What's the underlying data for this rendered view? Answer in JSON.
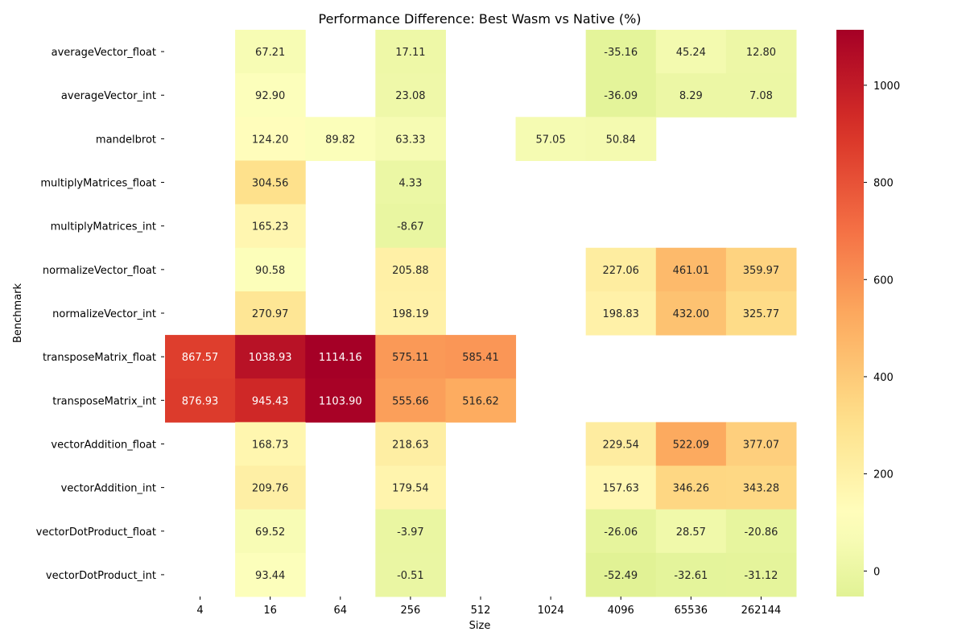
{
  "chart_data": {
    "type": "heatmap",
    "title": "Performance Difference: Best Wasm vs Native (%)",
    "xlabel": "Size",
    "ylabel": "Benchmark",
    "x_categories": [
      "4",
      "16",
      "64",
      "256",
      "512",
      "1024",
      "4096",
      "65536",
      "262144"
    ],
    "y_categories": [
      "averageVector_float",
      "averageVector_int",
      "mandelbrot",
      "multiplyMatrices_float",
      "multiplyMatrices_int",
      "normalizeVector_float",
      "normalizeVector_int",
      "transposeMatrix_float",
      "transposeMatrix_int",
      "vectorAddition_float",
      "vectorAddition_int",
      "vectorDotProduct_float",
      "vectorDotProduct_int"
    ],
    "values": [
      [
        null,
        67.21,
        null,
        17.11,
        null,
        null,
        -35.16,
        45.24,
        12.8
      ],
      [
        null,
        92.9,
        null,
        23.08,
        null,
        null,
        -36.09,
        8.29,
        7.08
      ],
      [
        null,
        124.2,
        89.82,
        63.33,
        null,
        57.05,
        50.84,
        null,
        null
      ],
      [
        null,
        304.56,
        null,
        4.33,
        null,
        null,
        null,
        null,
        null
      ],
      [
        null,
        165.23,
        null,
        -8.67,
        null,
        null,
        null,
        null,
        null
      ],
      [
        null,
        90.58,
        null,
        205.88,
        null,
        null,
        227.06,
        461.01,
        359.97
      ],
      [
        null,
        270.97,
        null,
        198.19,
        null,
        null,
        198.83,
        432.0,
        325.77
      ],
      [
        867.57,
        1038.93,
        1114.16,
        575.11,
        585.41,
        null,
        null,
        null,
        null
      ],
      [
        876.93,
        945.43,
        1103.9,
        555.66,
        516.62,
        null,
        null,
        null,
        null
      ],
      [
        null,
        168.73,
        null,
        218.63,
        null,
        null,
        229.54,
        522.09,
        377.07
      ],
      [
        null,
        209.76,
        null,
        179.54,
        null,
        null,
        157.63,
        346.26,
        343.28
      ],
      [
        null,
        69.52,
        null,
        -3.97,
        null,
        null,
        -26.06,
        28.57,
        -20.86
      ],
      [
        null,
        93.44,
        null,
        -0.51,
        null,
        null,
        -52.49,
        -32.61,
        -31.12
      ]
    ],
    "colormap": "RdYlGn_r",
    "vmin": -52.49,
    "vmax": 1114.16,
    "colorbar_ticks": [
      0,
      200,
      400,
      600,
      800,
      1000
    ],
    "value_format": "2 decimals"
  }
}
